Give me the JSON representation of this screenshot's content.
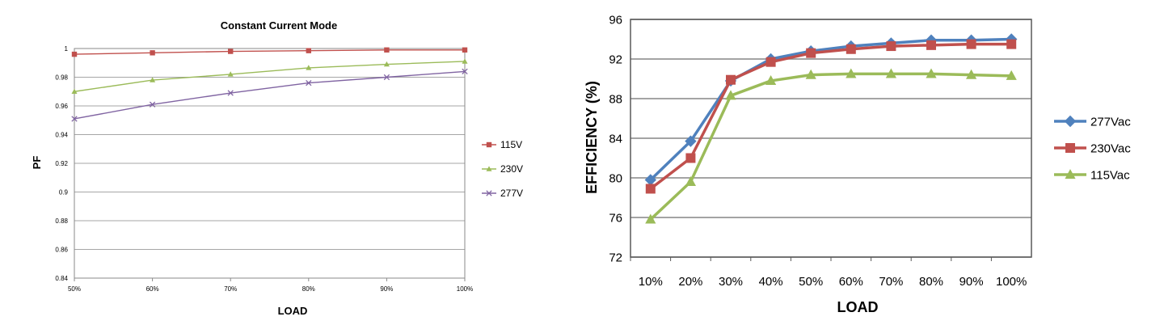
{
  "chart_data": [
    {
      "type": "line",
      "title": "Constant Current Mode",
      "xlabel": "LOAD",
      "ylabel": "PF",
      "categories": [
        "50%",
        "60%",
        "70%",
        "80%",
        "90%",
        "100%"
      ],
      "ylim": [
        0.84,
        1.0
      ],
      "yticks": [
        "0.84",
        "0.86",
        "0.88",
        "0.9",
        "0.92",
        "0.94",
        "0.96",
        "0.98",
        "1"
      ],
      "ytick_values": [
        0.84,
        0.86,
        0.88,
        0.9,
        0.92,
        0.94,
        0.96,
        0.98,
        1.0
      ],
      "grid": true,
      "legend_position": "right",
      "series": [
        {
          "name": "115V",
          "color": "#c0504d",
          "marker": "square",
          "values": [
            0.996,
            0.997,
            0.998,
            0.9985,
            0.999,
            0.999
          ]
        },
        {
          "name": "230V",
          "color": "#9bbb59",
          "marker": "triangle",
          "values": [
            0.97,
            0.978,
            0.982,
            0.9865,
            0.989,
            0.991
          ]
        },
        {
          "name": "277V",
          "color": "#8064a2",
          "marker": "x",
          "values": [
            0.951,
            0.961,
            0.969,
            0.976,
            0.98,
            0.984
          ]
        }
      ]
    },
    {
      "type": "line",
      "title": "",
      "xlabel": "LOAD",
      "ylabel": "EFFICIENCY (%)",
      "categories": [
        "10%",
        "20%",
        "30%",
        "40%",
        "50%",
        "60%",
        "70%",
        "80%",
        "90%",
        "100%"
      ],
      "ylim": [
        72,
        96
      ],
      "yticks": [
        "72",
        "76",
        "80",
        "84",
        "88",
        "92",
        "96"
      ],
      "ytick_values": [
        72,
        76,
        80,
        84,
        88,
        92,
        96
      ],
      "grid": true,
      "legend_position": "right",
      "series": [
        {
          "name": "277Vac",
          "color": "#4f81bd",
          "marker": "diamond",
          "values": [
            79.8,
            83.7,
            89.8,
            92.0,
            92.8,
            93.3,
            93.6,
            93.9,
            93.9,
            94.0
          ]
        },
        {
          "name": "230Vac",
          "color": "#c0504d",
          "marker": "square",
          "values": [
            78.9,
            82.0,
            89.9,
            91.7,
            92.6,
            93.0,
            93.3,
            93.4,
            93.5,
            93.5
          ]
        },
        {
          "name": "115Vac",
          "color": "#9bbb59",
          "marker": "triangle",
          "values": [
            75.8,
            79.6,
            88.3,
            89.8,
            90.4,
            90.5,
            90.5,
            90.5,
            90.4,
            90.3
          ]
        }
      ]
    }
  ]
}
